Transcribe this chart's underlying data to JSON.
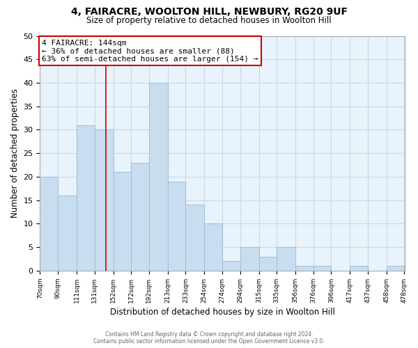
{
  "title": "4, FAIRACRE, WOOLTON HILL, NEWBURY, RG20 9UF",
  "subtitle": "Size of property relative to detached houses in Woolton Hill",
  "xlabel": "Distribution of detached houses by size in Woolton Hill",
  "ylabel": "Number of detached properties",
  "bar_color": "#c8ddf0",
  "bar_edge_color": "#9dbfda",
  "grid_color": "#c5daea",
  "bg_color": "#e8f3fb",
  "vline_color": "#cc0000",
  "vline_x": 144,
  "annotation_title": "4 FAIRACRE: 144sqm",
  "annotation_line1": "← 36% of detached houses are smaller (88)",
  "annotation_line2": "63% of semi-detached houses are larger (154) →",
  "annotation_box_color": "#ffffff",
  "annotation_box_edge": "#cc0000",
  "bin_edges": [
    70,
    90,
    111,
    131,
    152,
    172,
    192,
    213,
    233,
    254,
    274,
    294,
    315,
    335,
    356,
    376,
    396,
    417,
    437,
    458,
    478
  ],
  "bin_counts": [
    20,
    16,
    31,
    30,
    21,
    23,
    40,
    19,
    14,
    10,
    2,
    5,
    3,
    5,
    1,
    1,
    0,
    1,
    0,
    1
  ],
  "tick_labels": [
    "70sqm",
    "90sqm",
    "111sqm",
    "131sqm",
    "152sqm",
    "172sqm",
    "192sqm",
    "213sqm",
    "233sqm",
    "254sqm",
    "274sqm",
    "294sqm",
    "315sqm",
    "335sqm",
    "356sqm",
    "376sqm",
    "396sqm",
    "417sqm",
    "437sqm",
    "458sqm",
    "478sqm"
  ],
  "ylim": [
    0,
    50
  ],
  "yticks": [
    0,
    5,
    10,
    15,
    20,
    25,
    30,
    35,
    40,
    45,
    50
  ],
  "footer_line1": "Contains HM Land Registry data © Crown copyright and database right 2024.",
  "footer_line2": "Contains public sector information licensed under the Open Government Licence v3.0."
}
